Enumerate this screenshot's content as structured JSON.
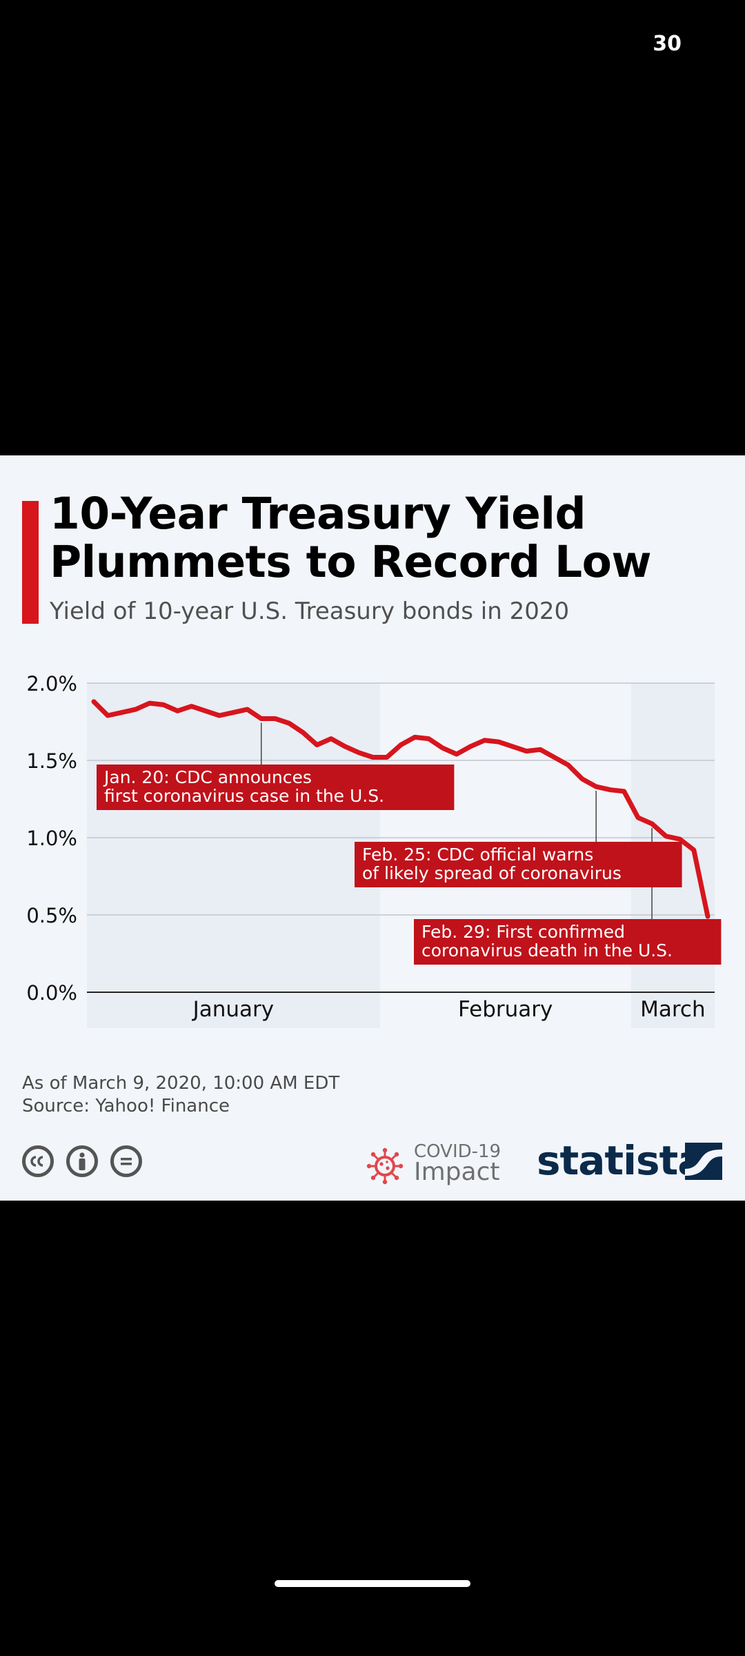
{
  "status": {
    "page_counter": "30"
  },
  "infographic": {
    "title": "10-Year Treasury Yield Plummets to Record Low",
    "subtitle": "Yield of 10-year U.S. Treasury bonds in 2020",
    "note": "As of March 9, 2020, 10:00 AM EDT",
    "source": "Source: Yahoo! Finance",
    "covid_badge_line1": "COVID-19",
    "covid_badge_line2": "Impact",
    "brand": "statista"
  },
  "colors": {
    "accent": "#d7151d",
    "annotation_bg": "#c0121b",
    "brand": "#0b2a4a",
    "card_bg": "#f2f5f9",
    "month_band": "#e9edf4"
  },
  "icons": [
    "creative-commons-icon",
    "attribution-icon",
    "no-derivatives-icon",
    "virus-icon",
    "statista-mark-icon"
  ],
  "chart_data": {
    "type": "line",
    "title": "10-Year Treasury Yield Plummets to Record Low",
    "ylabel": "",
    "xlabel": "",
    "ylim": [
      0,
      2.0
    ],
    "y_ticks": [
      "2.0%",
      "1.5%",
      "1.0%",
      "0.5%",
      "0.0%"
    ],
    "x_tick_labels": [
      "January",
      "February",
      "March"
    ],
    "shaded_months": [
      "January",
      "March"
    ],
    "grid": true,
    "legend": "none",
    "series": [
      {
        "values": [
          1.88,
          1.79,
          1.81,
          1.83,
          1.87,
          1.86,
          1.82,
          1.85,
          1.82,
          1.79,
          1.81,
          1.83,
          1.77,
          1.77,
          1.74,
          1.68,
          1.6,
          1.64,
          1.59,
          1.55,
          1.52,
          1.52,
          1.6,
          1.65,
          1.64,
          1.58,
          1.54,
          1.59,
          1.63,
          1.62,
          1.59,
          1.56,
          1.57,
          1.52,
          1.47,
          1.38,
          1.33,
          1.31,
          1.3,
          1.13,
          1.09,
          1.01,
          0.99,
          0.92,
          0.49
        ],
        "months": [
          "January",
          "January",
          "January",
          "January",
          "January",
          "January",
          "January",
          "January",
          "January",
          "January",
          "January",
          "January",
          "January",
          "January",
          "January",
          "January",
          "January",
          "January",
          "January",
          "January",
          "January",
          "February",
          "February",
          "February",
          "February",
          "February",
          "February",
          "February",
          "February",
          "February",
          "February",
          "February",
          "February",
          "February",
          "February",
          "February",
          "February",
          "February",
          "February",
          "March",
          "March",
          "March",
          "March",
          "March",
          "March"
        ]
      }
    ],
    "annotations": [
      {
        "text_lines": [
          "Jan. 20: CDC announces",
          "first coronavirus case in the U.S."
        ],
        "point_index": 12
      },
      {
        "text_lines": [
          "Feb. 25: CDC official warns",
          "of likely spread of coronavirus"
        ],
        "point_index": 36
      },
      {
        "text_lines": [
          "Feb. 29: First confirmed",
          "coronavirus death in the U.S."
        ],
        "point_index": 40
      }
    ]
  }
}
